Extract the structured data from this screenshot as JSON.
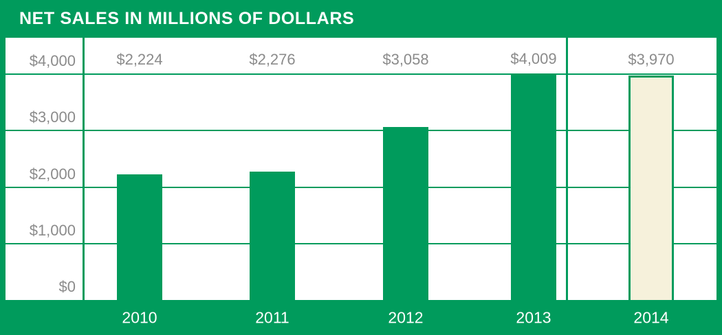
{
  "title": "NET SALES IN MILLIONS OF DOLLARS",
  "colors": {
    "green": "#009B5C",
    "cream": "#F6F1DB",
    "label_gray": "#8B8B8B",
    "white": "#FFFFFF"
  },
  "chart_data": {
    "type": "bar",
    "title": "NET SALES IN MILLIONS OF DOLLARS",
    "categories": [
      "2010",
      "2011",
      "2012",
      "2013",
      "2014"
    ],
    "values": [
      2224,
      2276,
      3058,
      4009,
      3970
    ],
    "value_labels": [
      "$2,224",
      "$2,276",
      "$3,058",
      "$4,009",
      "$3,970"
    ],
    "y_ticks": [
      "$4,000",
      "$3,000",
      "$2,000",
      "$1,000",
      "$0"
    ],
    "y_tick_values": [
      4000,
      3000,
      2000,
      1000,
      0
    ],
    "ylim": [
      0,
      4300
    ],
    "xlabel": "",
    "ylabel": "",
    "grid": "horizontal",
    "legend": "none",
    "highlight_category": "2014",
    "bar_color": "#009B5C",
    "highlight_bar_color": "#F6F1DB"
  }
}
